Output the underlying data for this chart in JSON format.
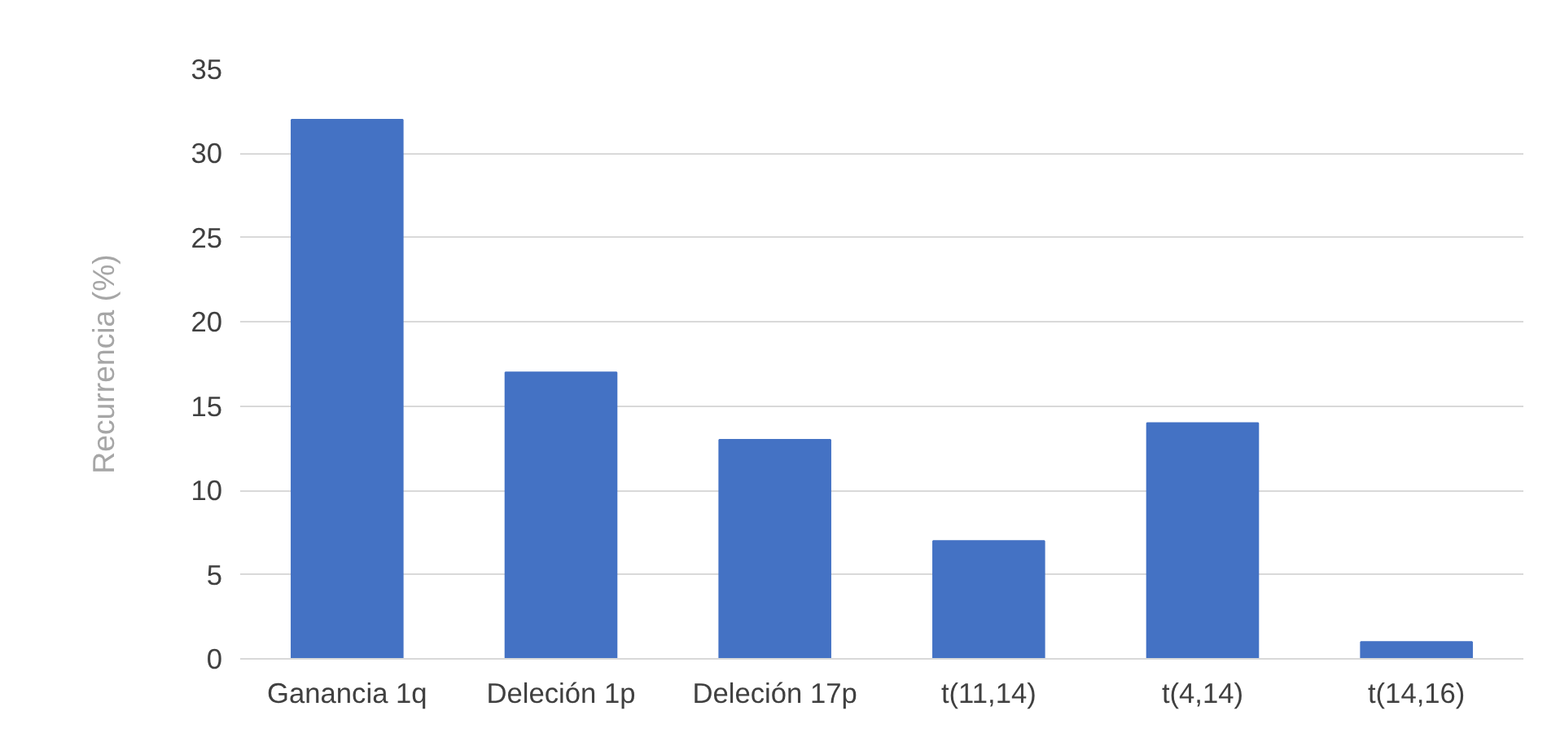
{
  "chart_data": {
    "type": "bar",
    "ylabel": "Recurrencia (%)",
    "categories": [
      "Ganancia 1q",
      "Deleción 1p",
      "Deleción 17p",
      "t(11,14)",
      "t(4,14)",
      "t(14,16)"
    ],
    "values": [
      32,
      17,
      13,
      7,
      14,
      1
    ],
    "color": "#4472c4",
    "ylim": [
      0,
      35
    ],
    "yticks": [
      0,
      5,
      10,
      15,
      20,
      25,
      30,
      35
    ],
    "grid": "y"
  }
}
